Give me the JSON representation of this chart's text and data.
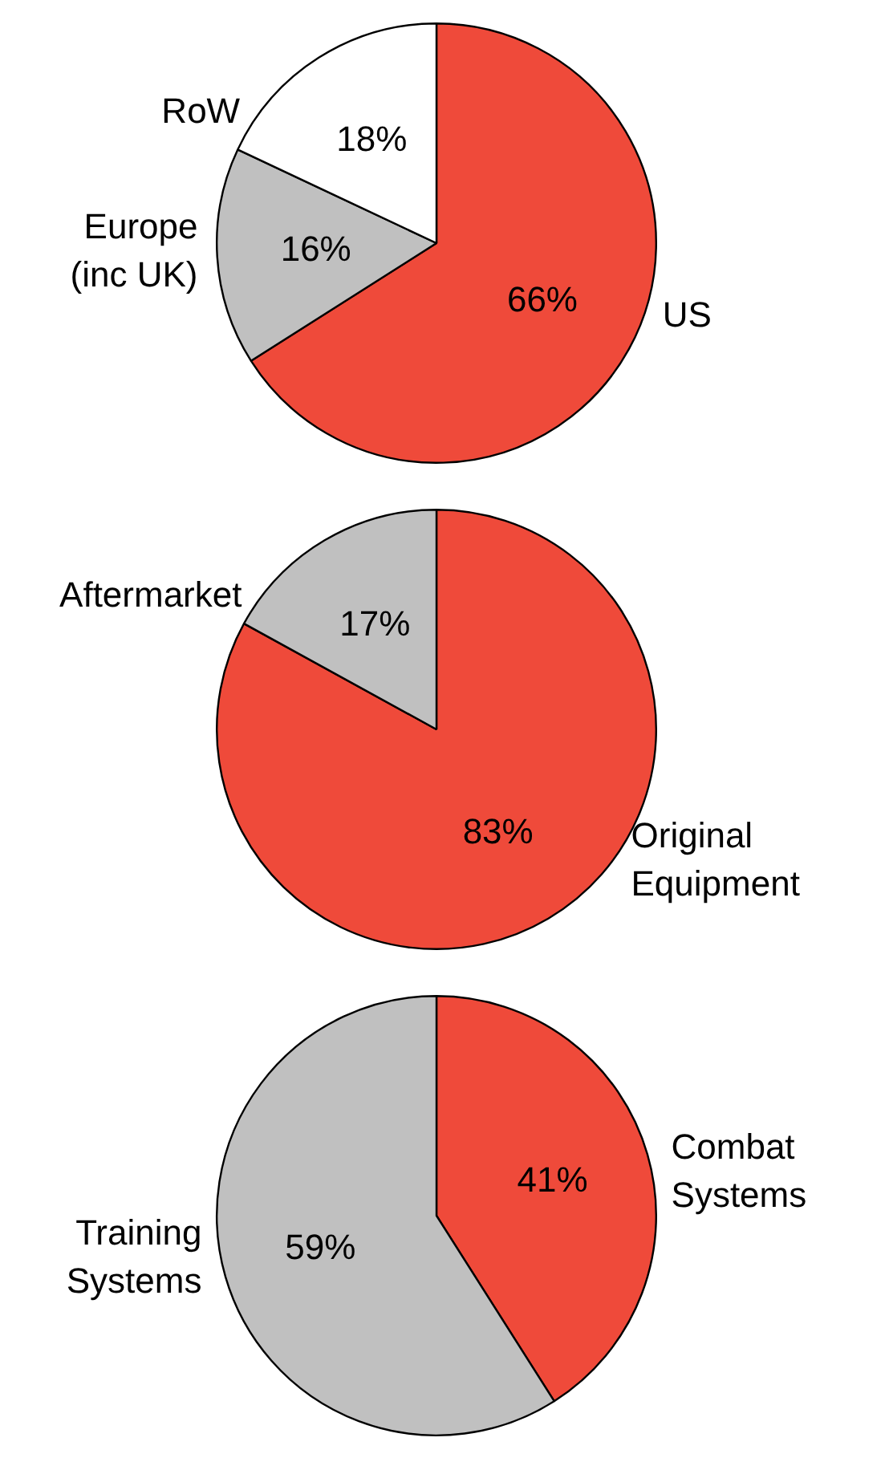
{
  "chart_data": [
    {
      "type": "pie",
      "categories": [
        "US",
        "Europe\n(inc UK)",
        "RoW"
      ],
      "values": [
        66,
        16,
        18
      ],
      "colors": [
        "#ef4a3a",
        "#c0c0c0",
        "#ffffff"
      ],
      "value_labels": [
        "66%",
        "16%",
        "18%"
      ],
      "legend": false
    },
    {
      "type": "pie",
      "categories": [
        "Original\nEquipment",
        "Aftermarket"
      ],
      "values": [
        83,
        17
      ],
      "colors": [
        "#ef4a3a",
        "#c0c0c0"
      ],
      "value_labels": [
        "83%",
        "17%"
      ],
      "legend": false
    },
    {
      "type": "pie",
      "categories": [
        "Combat\nSystems",
        "Training\nSystems"
      ],
      "values": [
        41,
        59
      ],
      "colors": [
        "#ef4a3a",
        "#c0c0c0"
      ],
      "value_labels": [
        "41%",
        "59%"
      ],
      "legend": false
    }
  ]
}
